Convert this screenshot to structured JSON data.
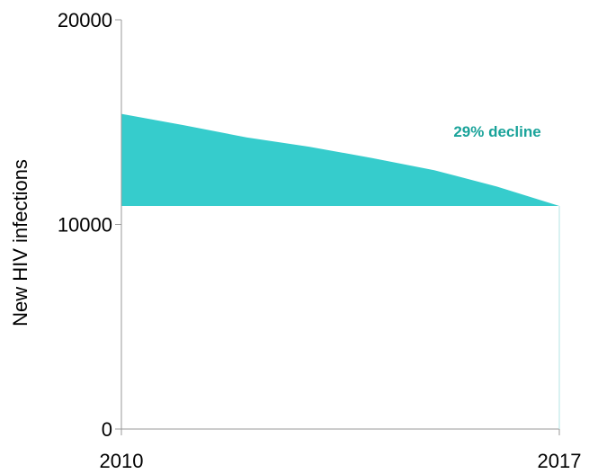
{
  "chart_data": {
    "type": "area",
    "x": [
      2010,
      2011,
      2012,
      2013,
      2014,
      2015,
      2016,
      2017
    ],
    "series": [
      {
        "upper": [
          15400,
          14850,
          14250,
          13800,
          13250,
          12650,
          11850,
          10900
        ],
        "lower": [
          10900,
          10900,
          10900,
          10900,
          10900,
          10900,
          10900,
          10900
        ]
      }
    ],
    "ylabel": "New HIV infections",
    "xlabel": "",
    "ylim": [
      0,
      20000
    ],
    "xlim": [
      2010,
      2017
    ],
    "y_ticks": [
      "0",
      "10000",
      "20000"
    ],
    "x_ticks": [
      "2010",
      "2017"
    ],
    "annotation": "29% decline",
    "grid": false,
    "colors": {
      "fill": "#36cccc",
      "annotation": "#1aa39a",
      "axis": "#999999",
      "right_line": "#b3e6e6"
    }
  }
}
